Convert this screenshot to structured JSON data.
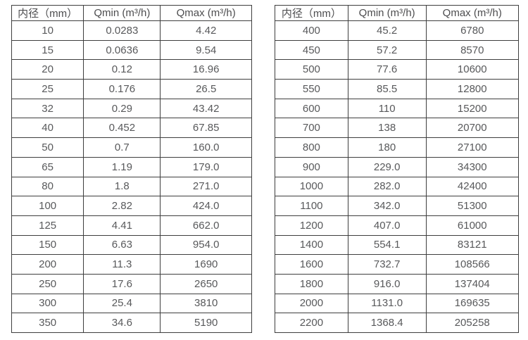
{
  "page": {
    "background_color": "#ffffff",
    "text_color": "#58595b",
    "border_color": "#3e3e3e"
  },
  "tables": [
    {
      "name": "flow-table-small-diameters",
      "headers": [
        "内径（mm）",
        "Qmin (m³/h)",
        "Qmax (m³/h)"
      ],
      "rows": [
        [
          "10",
          "0.0283",
          "4.42"
        ],
        [
          "15",
          "0.0636",
          "9.54"
        ],
        [
          "20",
          "0.12",
          "16.96"
        ],
        [
          "25",
          "0.176",
          "26.5"
        ],
        [
          "32",
          "0.29",
          "43.42"
        ],
        [
          "40",
          "0.452",
          "67.85"
        ],
        [
          "50",
          "0.7",
          "160.0"
        ],
        [
          "65",
          "1.19",
          "179.0"
        ],
        [
          "80",
          "1.8",
          "271.0"
        ],
        [
          "100",
          "2.82",
          "424.0"
        ],
        [
          "125",
          "4.41",
          "662.0"
        ],
        [
          "150",
          "6.63",
          "954.0"
        ],
        [
          "200",
          "11.3",
          "1690"
        ],
        [
          "250",
          "17.6",
          "2650"
        ],
        [
          "300",
          "25.4",
          "3810"
        ],
        [
          "350",
          "34.6",
          "5190"
        ]
      ]
    },
    {
      "name": "flow-table-large-diameters",
      "headers": [
        "内径（mm）",
        "Qmin (m³/h)",
        "Qmax (m³/h)"
      ],
      "rows": [
        [
          "400",
          "45.2",
          "6780"
        ],
        [
          "450",
          "57.2",
          "8570"
        ],
        [
          "500",
          "77.6",
          "10600"
        ],
        [
          "550",
          "85.5",
          "12800"
        ],
        [
          "600",
          "110",
          "15200"
        ],
        [
          "700",
          "138",
          "20700"
        ],
        [
          "800",
          "180",
          "27100"
        ],
        [
          "900",
          "229.0",
          "34300"
        ],
        [
          "1000",
          "282.0",
          "42400"
        ],
        [
          "1100",
          "342.0",
          "51300"
        ],
        [
          "1200",
          "407.0",
          "61000"
        ],
        [
          "1400",
          "554.1",
          "83121"
        ],
        [
          "1600",
          "732.7",
          "108566"
        ],
        [
          "1800",
          "916.0",
          "137404"
        ],
        [
          "2000",
          "1131.0",
          "169635"
        ],
        [
          "2200",
          "1368.4",
          "205258"
        ]
      ]
    }
  ]
}
